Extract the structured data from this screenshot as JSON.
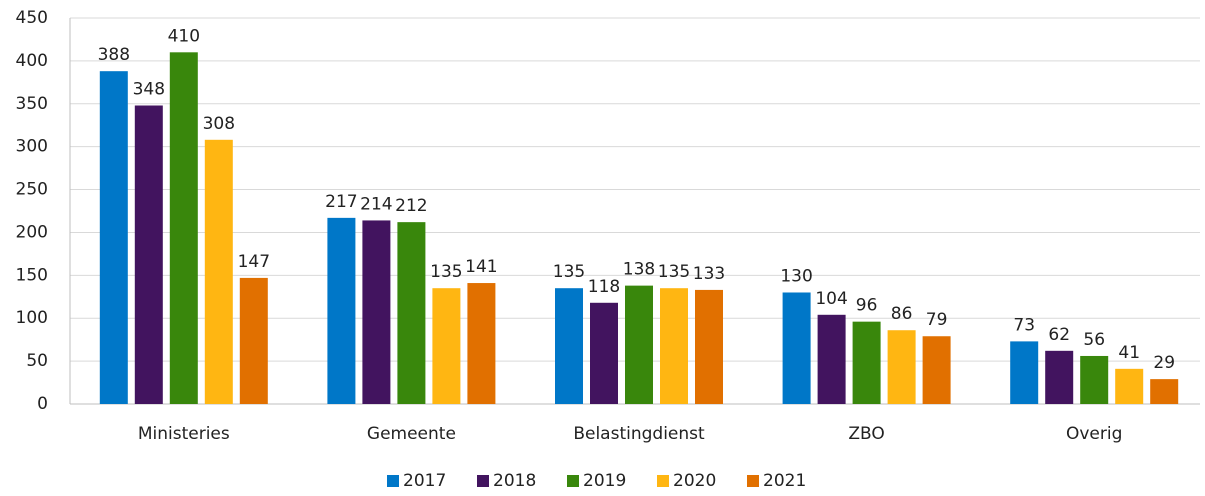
{
  "chart_data": {
    "type": "bar",
    "categories": [
      "Ministeries",
      "Gemeente",
      "Belastingdienst",
      "ZBO",
      "Overig"
    ],
    "series": [
      {
        "name": "2017",
        "color": "#0077c8",
        "values": [
          388,
          217,
          135,
          130,
          73
        ]
      },
      {
        "name": "2018",
        "color": "#42145f",
        "values": [
          348,
          214,
          118,
          104,
          62
        ]
      },
      {
        "name": "2019",
        "color": "#39870c",
        "values": [
          410,
          212,
          138,
          96,
          56
        ]
      },
      {
        "name": "2020",
        "color": "#ffb612",
        "values": [
          308,
          135,
          135,
          86,
          41
        ]
      },
      {
        "name": "2021",
        "color": "#e17000",
        "values": [
          147,
          141,
          133,
          79,
          29
        ]
      }
    ],
    "ylim": [
      0,
      450
    ],
    "yticks": [
      0,
      50,
      100,
      150,
      200,
      250,
      300,
      350,
      400,
      450
    ],
    "grid": true,
    "legend": "bottom"
  }
}
